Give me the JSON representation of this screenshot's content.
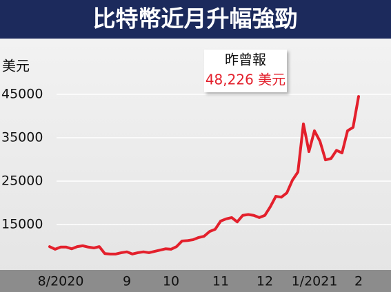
{
  "chart_data": {
    "type": "line",
    "title": "比特幣近月升幅強勁",
    "y_label": "美元",
    "annotation": {
      "title": "昨曾報",
      "value_text": "48,226 美元"
    },
    "categories": [
      null,
      null,
      "8/2020",
      null,
      null,
      null,
      null,
      null,
      null,
      null,
      null,
      null,
      null,
      null,
      "9",
      null,
      null,
      null,
      null,
      null,
      null,
      null,
      "10",
      null,
      null,
      null,
      null,
      null,
      null,
      null,
      null,
      "11",
      null,
      null,
      null,
      null,
      null,
      null,
      null,
      "12",
      null,
      null,
      null,
      null,
      null,
      null,
      null,
      null,
      "1/2021",
      null,
      null,
      null,
      null,
      null,
      null,
      null,
      "2"
    ],
    "series": [
      {
        "name": "比特幣",
        "color": "#e3202c",
        "values": [
          9900,
          9300,
          9800,
          9800,
          9400,
          9900,
          10100,
          9800,
          9600,
          9900,
          8300,
          8200,
          8200,
          8500,
          8700,
          8200,
          8500,
          8700,
          8500,
          8800,
          9100,
          9400,
          9300,
          9900,
          11200,
          11300,
          11500,
          12000,
          12300,
          13400,
          13900,
          15800,
          16300,
          16600,
          15600,
          17100,
          17300,
          17100,
          16600,
          17100,
          19100,
          21500,
          21300,
          22300,
          25200,
          27100,
          38200,
          31800,
          36600,
          34200,
          29900,
          30200,
          32100,
          31500,
          36600,
          37400,
          44500
        ]
      }
    ],
    "ylim": [
      4500,
      48000
    ],
    "yticks": [
      15000,
      25000,
      35000,
      45000
    ],
    "grid": true
  }
}
